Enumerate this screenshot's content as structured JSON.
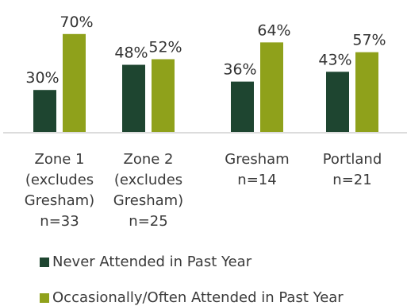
{
  "chart_data": {
    "type": "bar",
    "categories": [
      [
        "Zone 1",
        "(excludes",
        "Gresham)",
        "n=33"
      ],
      [
        "Zone 2",
        "(excludes",
        "Gresham)",
        "n=25"
      ],
      [
        "Gresham",
        "n=14"
      ],
      [
        "Portland",
        "n=21"
      ]
    ],
    "series": [
      {
        "name": "Never Attended in Past Year",
        "values": [
          30,
          48,
          36,
          43
        ],
        "labels": [
          "30%",
          "48%",
          "36%",
          "43%"
        ],
        "color": "#1e4530"
      },
      {
        "name": "Occasionally/Often Attended in Past Year",
        "values": [
          70,
          52,
          64,
          57
        ],
        "labels": [
          "70%",
          "52%",
          "64%",
          "57%"
        ],
        "color": "#8fa11b"
      }
    ],
    "ylim": [
      0,
      100
    ],
    "grid": false,
    "legend_position": "bottom-left"
  }
}
